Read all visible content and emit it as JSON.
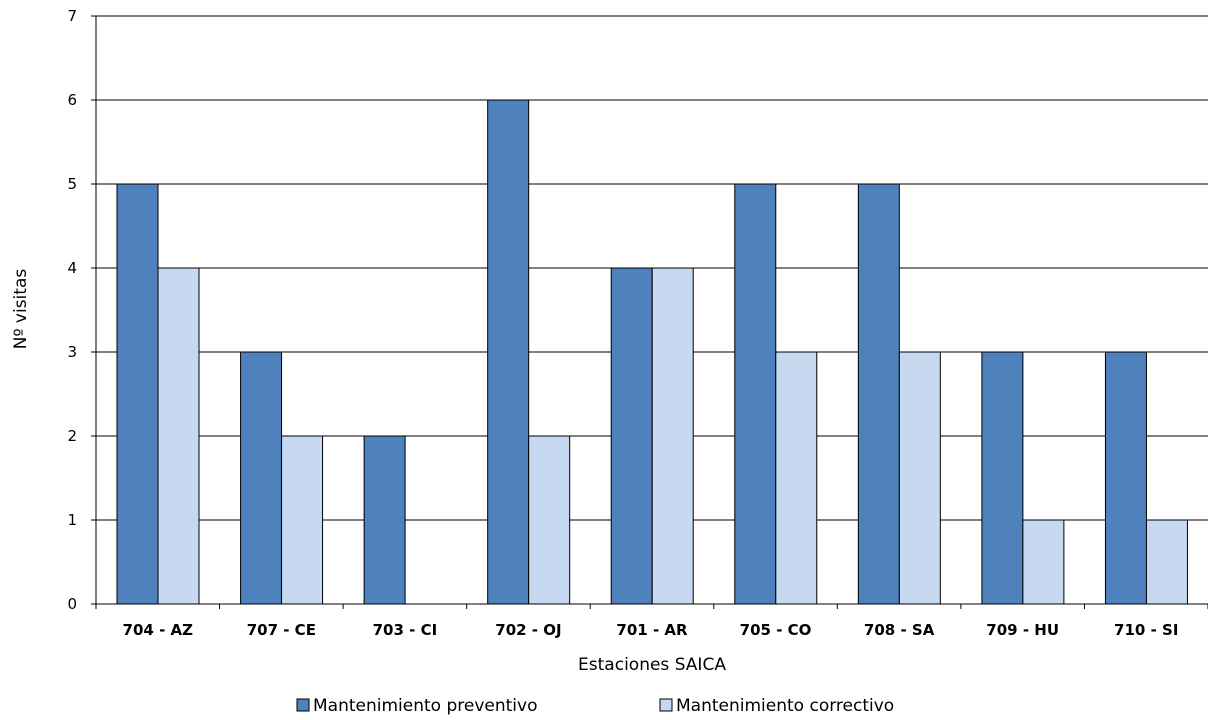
{
  "chart_data": {
    "type": "bar",
    "title": "",
    "xlabel": "Estaciones SAICA",
    "ylabel": "Nº visitas",
    "categories": [
      "704 - AZ",
      "707 - CE",
      "703 - CI",
      "702 - OJ",
      "701 - AR",
      "705 - CO",
      "708 - SA",
      "709 - HU",
      "710 - SI"
    ],
    "series": [
      {
        "name": "Mantenimiento preventivo",
        "color": "#4f81bd",
        "values": [
          5,
          3,
          2,
          6,
          4,
          5,
          5,
          3,
          3
        ]
      },
      {
        "name": "Mantenimiento correctivo",
        "color": "#c6d9f1",
        "values": [
          4,
          2,
          0,
          2,
          4,
          3,
          3,
          1,
          1
        ]
      }
    ],
    "ylim": [
      0,
      7
    ],
    "yticks": [
      0,
      1,
      2,
      3,
      4,
      5,
      6,
      7
    ],
    "grid": true,
    "legend_position": "bottom"
  }
}
